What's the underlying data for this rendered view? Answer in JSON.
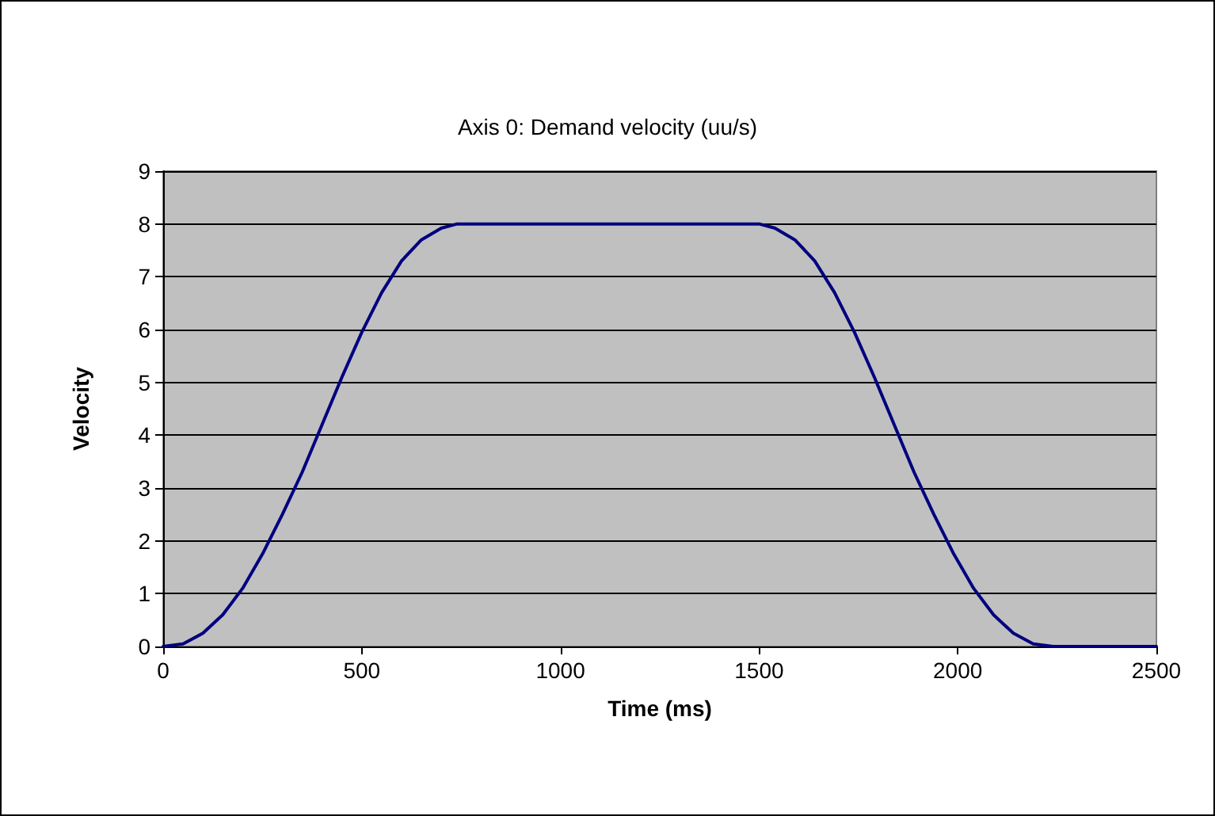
{
  "chart_data": {
    "type": "line",
    "title": "Axis 0: Demand velocity (uu/s)",
    "xlabel": "Time (ms)",
    "ylabel": "Velocity",
    "x": [
      0,
      50,
      100,
      150,
      200,
      250,
      300,
      350,
      400,
      450,
      500,
      550,
      600,
      650,
      700,
      740,
      1500,
      1540,
      1590,
      1640,
      1690,
      1740,
      1790,
      1840,
      1890,
      1940,
      1990,
      2040,
      2090,
      2140,
      2190,
      2240,
      2500
    ],
    "series": [
      {
        "color": "#000080",
        "values": [
          0,
          0.05,
          0.25,
          0.6,
          1.1,
          1.75,
          2.5,
          3.3,
          4.2,
          5.1,
          5.95,
          6.7,
          7.3,
          7.7,
          7.92,
          8,
          8,
          7.92,
          7.7,
          7.3,
          6.7,
          5.95,
          5.1,
          4.2,
          3.3,
          2.5,
          1.75,
          1.1,
          0.6,
          0.25,
          0.05,
          0,
          0
        ]
      }
    ],
    "xlim": [
      0,
      2500
    ],
    "xticks": [
      0,
      500,
      1000,
      1500,
      2000,
      2500
    ],
    "ylim": [
      0,
      9
    ],
    "yticks": [
      0,
      1,
      2,
      3,
      4,
      5,
      6,
      7,
      8,
      9
    ],
    "grid": "y",
    "marker": "none",
    "line_style": "solid"
  }
}
